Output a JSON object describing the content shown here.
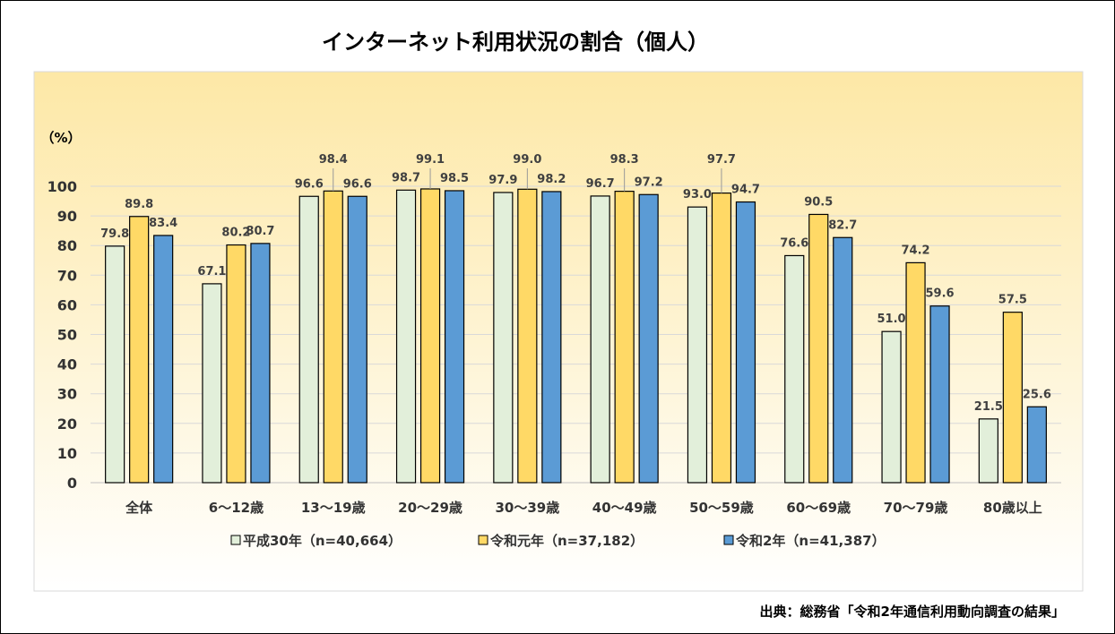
{
  "chart_data": {
    "type": "bar",
    "title": "インターネット利用状況の割合（個人）",
    "ylabel": "（%）",
    "ylim": [
      0,
      100
    ],
    "yticks": [
      0,
      10,
      20,
      30,
      40,
      50,
      60,
      70,
      80,
      90,
      100
    ],
    "grid": true,
    "legend_position": "bottom",
    "categories": [
      "全体",
      "6～12歳",
      "13～19歳",
      "20～29歳",
      "30～39歳",
      "40～49歳",
      "50～59歳",
      "60～69歳",
      "70～79歳",
      "80歳以上"
    ],
    "series": [
      {
        "name": "平成30年（n=40,664）",
        "color": "#e2efda",
        "values": [
          79.8,
          67.1,
          96.6,
          98.7,
          97.9,
          96.7,
          93.0,
          76.6,
          51.0,
          21.5
        ]
      },
      {
        "name": "令和元年（n=37,182）",
        "color": "#ffd966",
        "values": [
          89.8,
          80.2,
          98.4,
          99.1,
          99.0,
          98.3,
          97.7,
          90.5,
          74.2,
          57.5
        ]
      },
      {
        "name": "令和2年（n=41,387）",
        "color": "#5b9bd5",
        "values": [
          83.4,
          80.7,
          96.6,
          98.5,
          98.2,
          97.2,
          94.7,
          82.7,
          59.6,
          25.6
        ]
      }
    ],
    "source": "出典：総務省「令和2年通信利用動向調査の結果」"
  }
}
